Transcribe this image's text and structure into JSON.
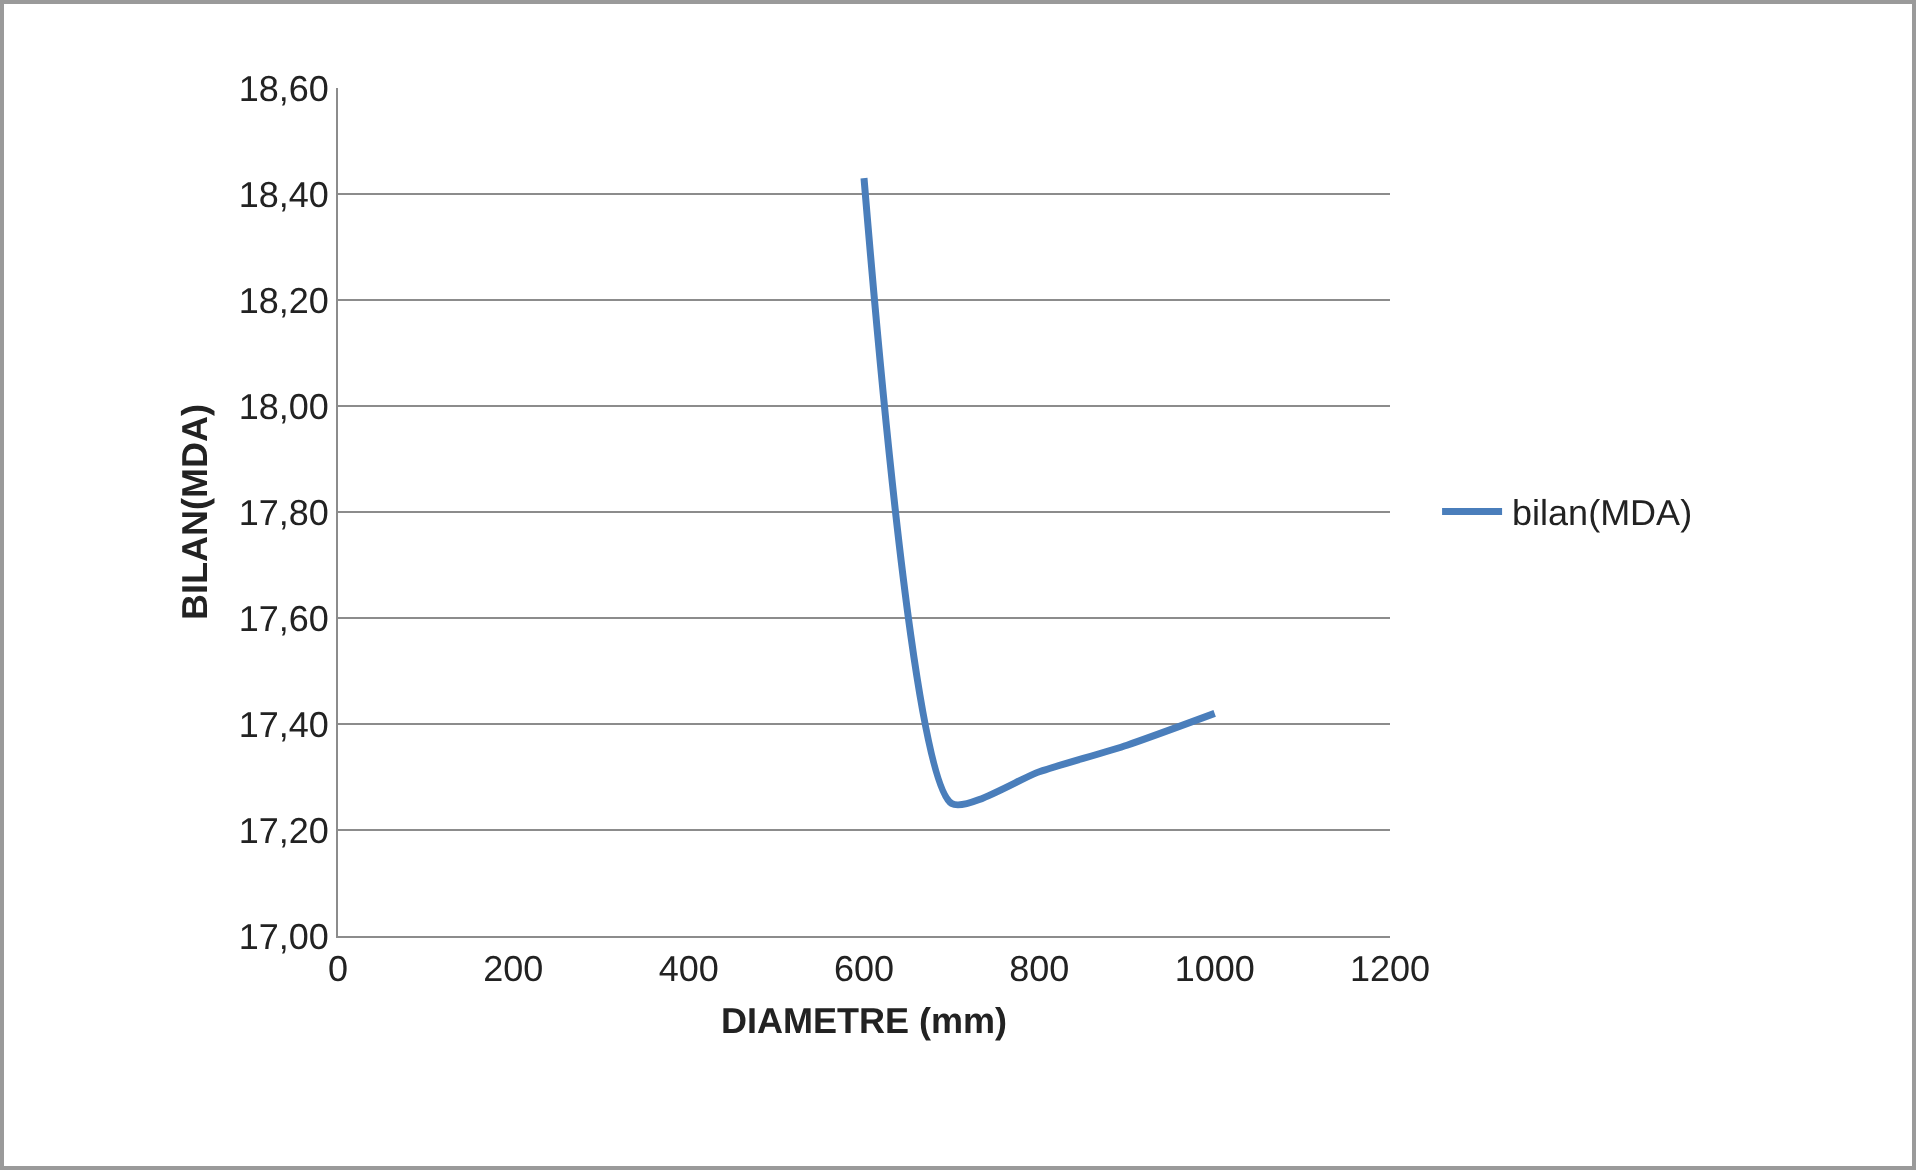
{
  "chart_data": {
    "type": "line",
    "xlabel": "DIAMETRE (mm)",
    "ylabel": "BILAN(MDA)",
    "x": [
      600,
      700,
      800,
      900,
      1000
    ],
    "series": [
      {
        "name": "bilan(MDA)",
        "color": "#4a7ebb",
        "values": [
          18.43,
          17.25,
          17.31,
          17.36,
          17.42
        ]
      }
    ],
    "xlim": [
      0,
      1200
    ],
    "xticks": [
      0,
      200,
      400,
      600,
      800,
      1000,
      1200
    ],
    "ylim": [
      17,
      18.6
    ],
    "yticks": [
      {
        "value": 17,
        "label": "17,00"
      },
      {
        "value": 17.2,
        "label": "17,20"
      },
      {
        "value": 17.4,
        "label": "17,40"
      },
      {
        "value": 17.6,
        "label": "17,60"
      },
      {
        "value": 17.8,
        "label": "17,80"
      },
      {
        "value": 18,
        "label": "18,00"
      },
      {
        "value": 18.2,
        "label": "18,20"
      },
      {
        "value": 18.4,
        "label": "18,40"
      },
      {
        "value": 18.6,
        "label": "18,60"
      }
    ],
    "grid": "y",
    "legend": "right",
    "marker": "none",
    "line_style": "solid"
  }
}
